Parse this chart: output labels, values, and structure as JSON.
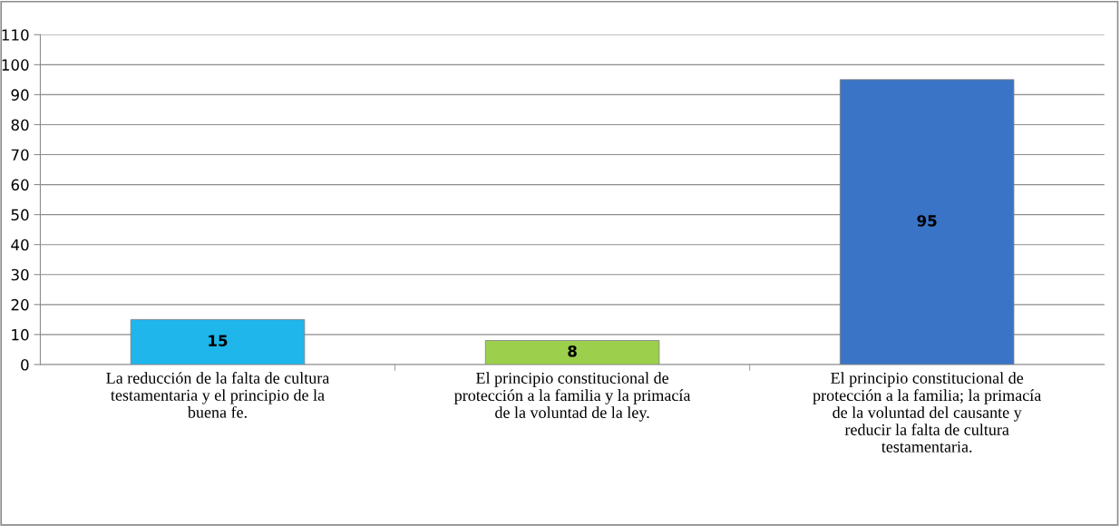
{
  "chart_data": {
    "type": "bar",
    "categories": [
      "La reducción de la falta de cultura\ntestamentaria y el principio de la\nbuena fe.",
      "El principio constitucional de\nprotección a la familia y la primacía\nde la voluntad de la ley.",
      "El principio constitucional de\nprotección a la familia; la primacía\nde la voluntad del causante y\nreducir la falta de cultura\ntestamentaria."
    ],
    "values": [
      15,
      8,
      95
    ],
    "colors": [
      "#1fb6ec",
      "#9bcf4c",
      "#3a74c6"
    ],
    "ylim": [
      0,
      110
    ],
    "yticks": [
      0,
      10,
      20,
      30,
      40,
      50,
      60,
      70,
      80,
      90,
      100,
      110
    ],
    "grid": "y",
    "data_labels": true
  }
}
